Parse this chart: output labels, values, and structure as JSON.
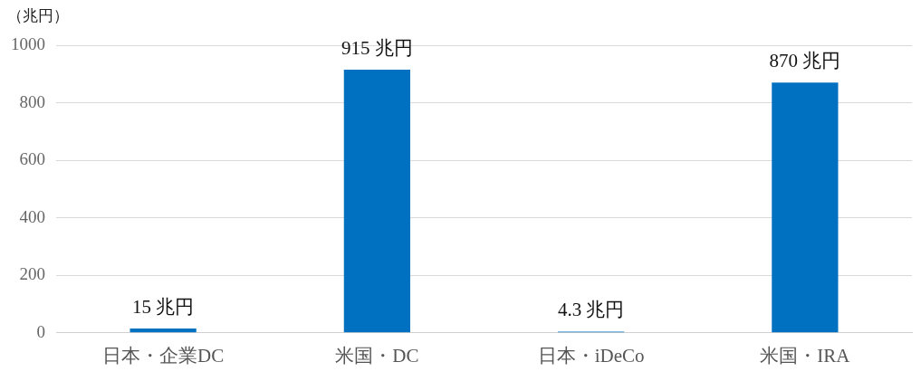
{
  "chart_data": {
    "type": "bar",
    "ylabel": "（兆円）",
    "categories": [
      "日本・企業DC",
      "米国・DC",
      "日本・iDeCo",
      "米国・IRA"
    ],
    "values": [
      15,
      915,
      4.3,
      870
    ],
    "value_labels": [
      "15 兆円",
      "915 兆円",
      "4.3 兆円",
      "870 兆円"
    ],
    "color": "#0070c0",
    "ylim": [
      0,
      1000
    ],
    "yticks": [
      0,
      200,
      400,
      600,
      800,
      1000
    ],
    "grid": "y",
    "legend": false
  }
}
